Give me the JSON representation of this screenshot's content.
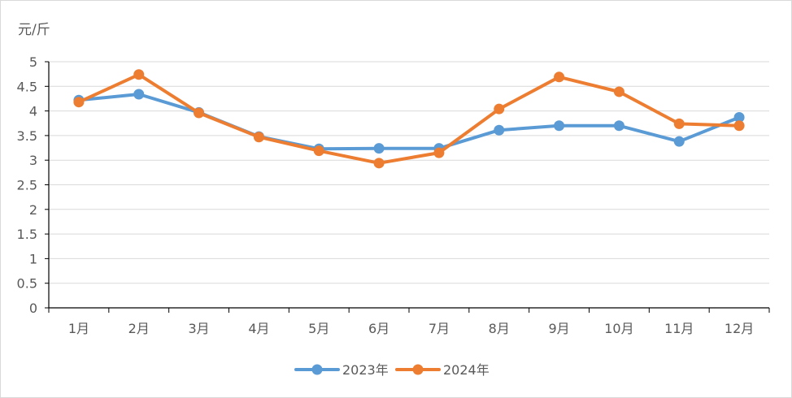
{
  "chart_data": {
    "type": "line",
    "unit_label": "元/斤",
    "categories": [
      "1月",
      "2月",
      "3月",
      "4月",
      "5月",
      "6月",
      "7月",
      "8月",
      "9月",
      "10月",
      "11月",
      "12月"
    ],
    "series": [
      {
        "name": "2023年",
        "color": "#5b9bd5",
        "values": [
          4.22,
          4.34,
          3.97,
          3.48,
          3.23,
          3.24,
          3.24,
          3.61,
          3.7,
          3.7,
          3.38,
          3.87
        ]
      },
      {
        "name": "2024年",
        "color": "#ed7d31",
        "values": [
          4.18,
          4.74,
          3.96,
          3.47,
          3.19,
          2.94,
          3.15,
          4.04,
          4.69,
          4.39,
          3.74,
          3.7
        ]
      }
    ],
    "yticks": [
      "0",
      "0.5",
      "1",
      "1.5",
      "2",
      "2.5",
      "3",
      "3.5",
      "4",
      "4.5",
      "5"
    ],
    "ylim": [
      0,
      5
    ],
    "grid": true,
    "legend": "bottom-center"
  }
}
